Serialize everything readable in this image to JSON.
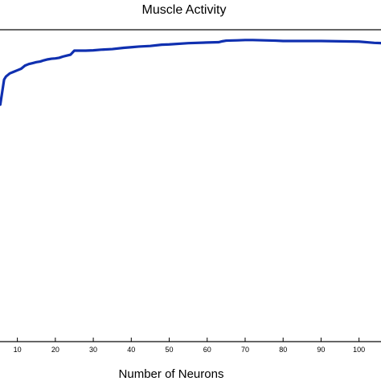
{
  "chart_data": {
    "type": "line",
    "title": "Muscle Activity",
    "xlabel": "Number of Neurons",
    "ylabel": "",
    "xlim": [
      5,
      106
    ],
    "ylim": [
      0,
      1
    ],
    "x_ticks": [
      "10",
      "20",
      "30",
      "40",
      "50",
      "60",
      "70",
      "80",
      "90",
      "100"
    ],
    "grid": false,
    "series": [
      {
        "color": "#1030b0",
        "x": [
          5,
          5.5,
          6,
          6.5,
          7,
          8,
          9,
          10,
          11,
          12,
          13,
          14,
          15,
          16,
          17,
          18,
          19,
          20,
          21,
          22,
          23,
          24,
          25,
          28,
          30,
          32,
          35,
          38,
          40,
          42,
          45,
          48,
          50,
          55,
          60,
          63,
          64,
          65,
          68,
          70,
          72,
          75,
          78,
          80,
          85,
          90,
          95,
          100,
          104,
          106
        ],
        "y": [
          0.76,
          0.76,
          0.8,
          0.84,
          0.85,
          0.86,
          0.865,
          0.87,
          0.875,
          0.885,
          0.89,
          0.893,
          0.896,
          0.898,
          0.902,
          0.905,
          0.907,
          0.908,
          0.91,
          0.914,
          0.917,
          0.92,
          0.933,
          0.933,
          0.934,
          0.936,
          0.938,
          0.942,
          0.944,
          0.946,
          0.948,
          0.952,
          0.953,
          0.957,
          0.959,
          0.96,
          0.963,
          0.965,
          0.966,
          0.967,
          0.967,
          0.966,
          0.965,
          0.964,
          0.964,
          0.964,
          0.963,
          0.962,
          0.958,
          0.957
        ]
      }
    ]
  }
}
